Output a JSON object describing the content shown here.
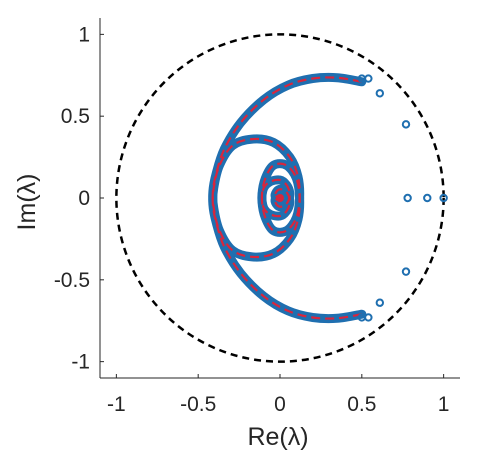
{
  "chart_data": {
    "type": "scatter",
    "title": "",
    "xlabel": "Re(λ)",
    "ylabel": "Im(λ)",
    "xlim": [
      -1.1,
      1.1
    ],
    "ylim": [
      -1.1,
      1.1
    ],
    "xticks": [
      -1,
      -0.5,
      0,
      0.5,
      1
    ],
    "xtick_labels": [
      "-1",
      "-0.5",
      "0",
      "0.5",
      "1"
    ],
    "yticks": [
      1,
      0.5,
      0,
      -0.5,
      -1
    ],
    "ytick_labels": [
      "1",
      "0.5",
      "0",
      "-0.5",
      "-1"
    ],
    "grid": false,
    "legend": "none",
    "unit_circle": {
      "radius": 1,
      "style": "dashed",
      "color": "#000000"
    },
    "series": [
      {
        "style": "thick-line-markers",
        "color": "#1f6fb0",
        "spiral_points": [
          [
            0.5,
            0.71
          ],
          [
            0.35,
            0.735
          ],
          [
            0.2,
            0.73
          ],
          [
            0.05,
            0.69
          ],
          [
            -0.1,
            0.6
          ],
          [
            -0.24,
            0.46
          ],
          [
            -0.34,
            0.3
          ],
          [
            -0.39,
            0.15
          ],
          [
            -0.41,
            0.04
          ],
          [
            -0.405,
            -0.06
          ],
          [
            -0.37,
            -0.2
          ],
          [
            -0.29,
            -0.32
          ],
          [
            -0.17,
            -0.36
          ],
          [
            -0.04,
            -0.34
          ],
          [
            0.06,
            -0.25
          ],
          [
            0.11,
            -0.13
          ],
          [
            0.12,
            0.0
          ],
          [
            0.1,
            0.12
          ],
          [
            0.04,
            0.2
          ],
          [
            -0.04,
            0.2
          ],
          [
            -0.09,
            0.12
          ],
          [
            -0.11,
            0.02
          ],
          [
            -0.1,
            -0.06
          ],
          [
            -0.06,
            -0.1
          ],
          [
            0.0,
            -0.11
          ],
          [
            0.04,
            -0.08
          ],
          [
            0.06,
            -0.03
          ],
          [
            0.05,
            0.02
          ],
          [
            0.02,
            0.05
          ],
          [
            -0.01,
            0.05
          ],
          [
            -0.03,
            0.02
          ],
          [
            -0.02,
            -0.01
          ],
          [
            0.0,
            0.0
          ]
        ],
        "points": [
          [
            1.0,
            0.0
          ],
          [
            0.9,
            0.0
          ],
          [
            0.78,
            0.0
          ],
          [
            0.77,
            0.45
          ],
          [
            0.77,
            -0.45
          ],
          [
            0.61,
            0.64
          ],
          [
            0.61,
            -0.64
          ],
          [
            0.54,
            0.73
          ],
          [
            0.54,
            -0.73
          ],
          [
            0.5,
            0.73
          ],
          [
            0.5,
            -0.73
          ]
        ]
      },
      {
        "style": "dashed-line",
        "color": "#d7263d"
      }
    ]
  }
}
